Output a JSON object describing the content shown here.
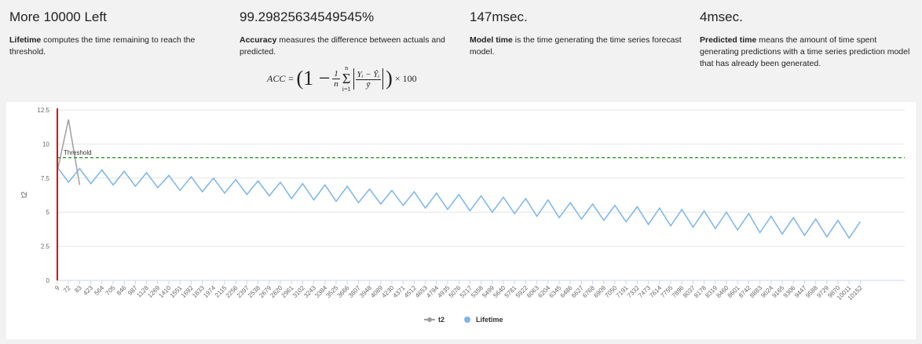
{
  "cards": [
    {
      "title": "More 10000 Left",
      "lead": "Lifetime",
      "text": " computes the time remaining to reach the threshold."
    },
    {
      "title": "99.29825634549545%",
      "lead": "Accuracy",
      "text": " measures the difference between actuals and predicted."
    },
    {
      "title": "147msec.",
      "lead": "Model time",
      "text": " is the time generating the time series forecast model."
    },
    {
      "title": "4msec.",
      "lead": "Predicted time",
      "text": " means the amount of time spent generating predictions with a time series prediction model that has already been generated."
    }
  ],
  "formula": {
    "lhs": "ACC =",
    "open": "(1 −",
    "frac_num": "1",
    "frac_den": "n",
    "sum_top": "n",
    "sigma": "Σ",
    "sum_bottom": "i=1",
    "abs_num": "Yᵢ − Ŷᵢ",
    "abs_den": "ȳ",
    "close": ")",
    "times": "× 100"
  },
  "chart_data": {
    "type": "line",
    "y_label": "t2",
    "categories": [
      "9",
      "72",
      "83",
      "423",
      "564",
      "705",
      "846",
      "987",
      "1128",
      "1269",
      "1410",
      "1551",
      "1692",
      "1833",
      "1974",
      "2115",
      "2256",
      "2397",
      "2538",
      "2679",
      "2820",
      "2961",
      "3102",
      "3243",
      "3384",
      "3525",
      "3666",
      "3807",
      "3948",
      "4089",
      "4230",
      "4371",
      "4512",
      "4653",
      "4794",
      "4935",
      "5076",
      "5217",
      "5358",
      "5499",
      "5640",
      "5781",
      "5922",
      "6063",
      "6204",
      "6345",
      "6486",
      "6627",
      "6768",
      "6909",
      "7050",
      "7191",
      "7332",
      "7473",
      "7614",
      "7755",
      "7896",
      "8037",
      "8178",
      "8319",
      "8460",
      "8601",
      "8742",
      "8883",
      "9024",
      "9165",
      "9306",
      "9447",
      "9588",
      "9729",
      "9870",
      "10011",
      "10152"
    ],
    "series": [
      {
        "name": "t2",
        "color": "#9e9e9e",
        "values": [
          8,
          11.8,
          7,
          null,
          null,
          null,
          null,
          null,
          null,
          null,
          null,
          null,
          null,
          null,
          null,
          null,
          null,
          null,
          null,
          null,
          null,
          null,
          null,
          null,
          null,
          null,
          null,
          null,
          null,
          null,
          null,
          null,
          null,
          null,
          null,
          null,
          null,
          null,
          null,
          null,
          null,
          null,
          null,
          null,
          null,
          null,
          null,
          null,
          null,
          null,
          null,
          null,
          null,
          null,
          null,
          null,
          null,
          null,
          null,
          null,
          null,
          null,
          null,
          null,
          null,
          null,
          null,
          null,
          null,
          null,
          null,
          null,
          null
        ]
      },
      {
        "name": "Lifetime",
        "color": "#7cb5ec",
        "values": [
          8.3,
          7.2,
          8.2,
          7.1,
          8.1,
          7.0,
          8.0,
          6.9,
          7.9,
          6.8,
          7.7,
          6.6,
          7.6,
          6.5,
          7.5,
          6.4,
          7.4,
          6.3,
          7.3,
          6.2,
          7.2,
          6.0,
          7.1,
          5.9,
          7.0,
          5.8,
          6.9,
          5.7,
          6.7,
          5.6,
          6.6,
          5.5,
          6.5,
          5.3,
          6.4,
          5.2,
          6.3,
          5.1,
          6.2,
          5.0,
          6.1,
          4.9,
          6.0,
          4.7,
          5.9,
          4.6,
          5.7,
          4.5,
          5.6,
          4.4,
          5.5,
          4.3,
          5.4,
          4.1,
          5.3,
          4.0,
          5.2,
          3.9,
          5.1,
          3.8,
          5.0,
          3.7,
          4.9,
          3.5,
          4.7,
          3.4,
          4.6,
          3.3,
          4.5,
          3.2,
          4.4,
          3.1,
          4.3
        ]
      }
    ],
    "ylim": [
      0,
      12.5
    ],
    "yticks": [
      0,
      2.5,
      5,
      7.5,
      10,
      12.5
    ],
    "grid": true,
    "threshold": {
      "label": "Threshold",
      "value": 9,
      "color": "#1a8a1a"
    },
    "vline": {
      "category_index": 0,
      "color": "#e00000"
    },
    "legend": "bottom"
  }
}
